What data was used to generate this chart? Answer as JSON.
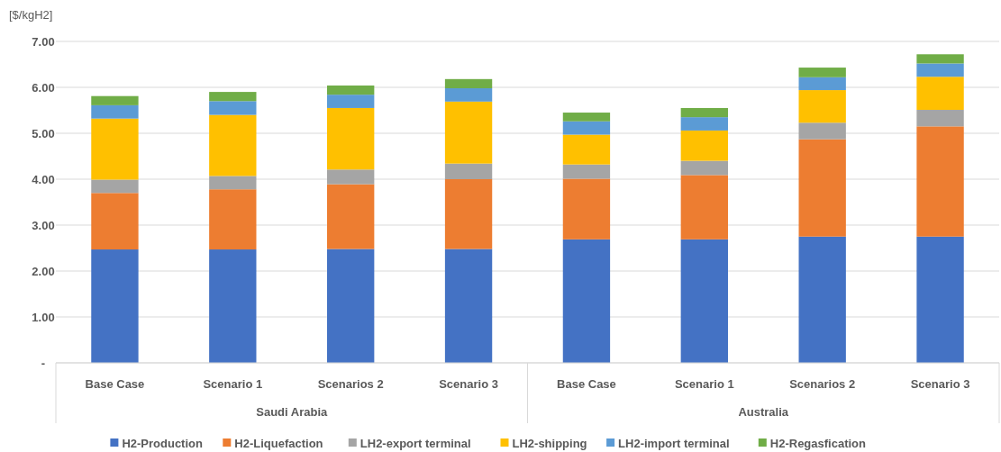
{
  "chart_data": {
    "type": "bar",
    "stacked": true,
    "ylabel": "[$/kgH2]",
    "categories": [
      "Base Case",
      "Scenario 1",
      "Scenarios 2",
      "Scenario 3",
      "Base Case",
      "Scenario 1",
      "Scenarios 2",
      "Scenario 3"
    ],
    "annotations": [
      "Saudi Arabia",
      "Australia"
    ],
    "series": [
      {
        "name": "H2-Production",
        "color": "#4472c4",
        "values": [
          2.47,
          2.47,
          2.48,
          2.48,
          2.69,
          2.69,
          2.75,
          2.75
        ]
      },
      {
        "name": "H2-Liquefaction",
        "color": "#ed7d31",
        "values": [
          1.23,
          1.31,
          1.41,
          1.52,
          1.32,
          1.4,
          2.12,
          2.4
        ]
      },
      {
        "name": "LH2-export terminal",
        "color": "#a5a5a5",
        "values": [
          0.29,
          0.29,
          0.32,
          0.34,
          0.31,
          0.31,
          0.36,
          0.36
        ]
      },
      {
        "name": "LH2-shipping",
        "color": "#ffc000",
        "values": [
          1.33,
          1.33,
          1.34,
          1.35,
          0.65,
          0.66,
          0.71,
          0.72
        ]
      },
      {
        "name": "LH2-import terminal",
        "color": "#5b9bd5",
        "values": [
          0.29,
          0.3,
          0.29,
          0.29,
          0.29,
          0.29,
          0.28,
          0.29
        ]
      },
      {
        "name": "H2-Regasfication",
        "color": "#70ad47",
        "values": [
          0.2,
          0.2,
          0.2,
          0.2,
          0.19,
          0.2,
          0.21,
          0.2
        ]
      }
    ],
    "ylim": [
      0,
      7
    ],
    "yticks": [
      {
        "value": 0,
        "label": "-"
      },
      {
        "value": 1,
        "label": "1.00"
      },
      {
        "value": 2,
        "label": "2.00"
      },
      {
        "value": 3,
        "label": "3.00"
      },
      {
        "value": 4,
        "label": "4.00"
      },
      {
        "value": 5,
        "label": "5.00"
      },
      {
        "value": 6,
        "label": "6.00"
      },
      {
        "value": 7,
        "label": "7.00"
      }
    ],
    "grid": "y",
    "legend": "bottom"
  }
}
